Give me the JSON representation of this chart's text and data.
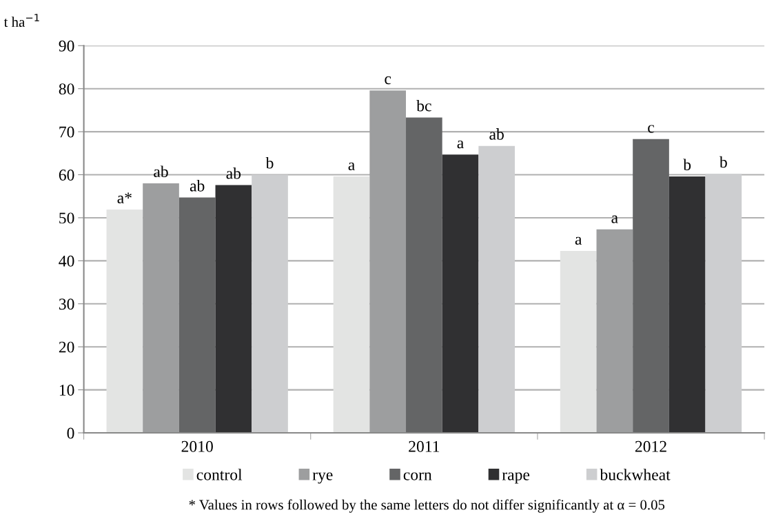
{
  "chart_data": {
    "type": "bar",
    "ylabel": "t ha$^{−1}$",
    "categories": [
      "2010",
      "2011",
      "2012"
    ],
    "series": [
      {
        "name": "control",
        "color": "#e3e4e3",
        "values": [
          51.9,
          59.6,
          42.3
        ],
        "value_labels": [
          "a*",
          "a",
          "a"
        ]
      },
      {
        "name": "rye",
        "color": "#9d9e9f",
        "values": [
          58.0,
          79.6,
          47.3
        ],
        "value_labels": [
          "ab",
          "c",
          "a"
        ]
      },
      {
        "name": "corn",
        "color": "#646566",
        "values": [
          54.7,
          73.3,
          68.3
        ],
        "value_labels": [
          "ab",
          "bc",
          "c"
        ]
      },
      {
        "name": "rape",
        "color": "#303032",
        "values": [
          57.6,
          64.7,
          59.6
        ],
        "value_labels": [
          "ab",
          "a",
          "b"
        ]
      },
      {
        "name": "buckwheat",
        "color": "#cdced0",
        "values": [
          60.0,
          66.7,
          60.2
        ],
        "value_labels": [
          "b",
          "ab",
          "b"
        ]
      }
    ],
    "ylim": [
      0,
      90
    ],
    "yticks": [
      0,
      10,
      20,
      30,
      40,
      50,
      60,
      70,
      80,
      90
    ],
    "grid": "y",
    "legend": "bottom",
    "annotations": [
      "* Values in rows followed by the same letters do not differ significantly at α = 0.05"
    ]
  }
}
